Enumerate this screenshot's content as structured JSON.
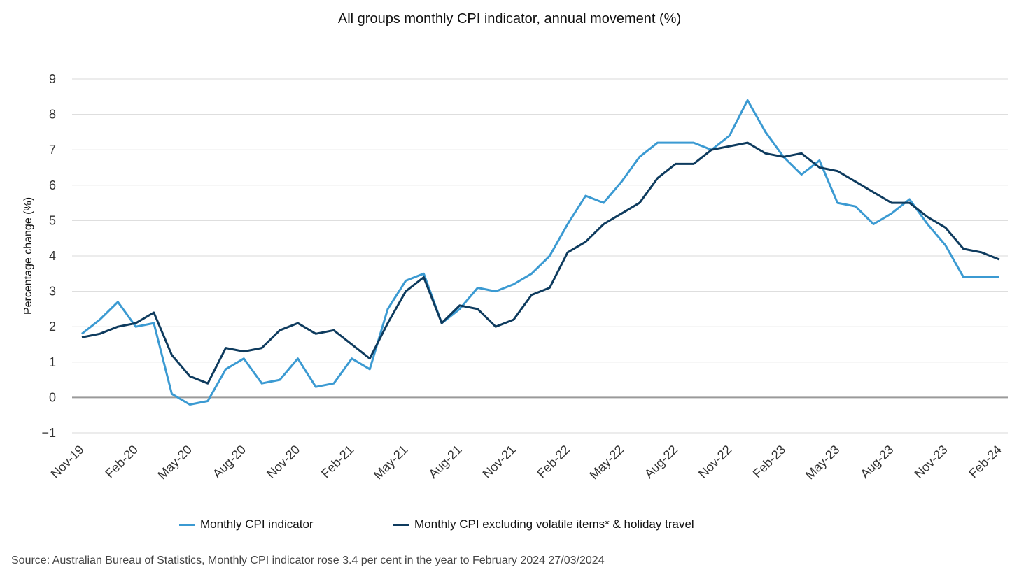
{
  "colors": {
    "series1": "#3b9ad2",
    "series2": "#0e3b5e",
    "grid": "#d9d9d9",
    "zero": "#9a9a9a"
  },
  "footer": {
    "source": "Source: Australian Bureau of Statistics, Monthly CPI indicator rose 3.4 per cent in the year to February 2024 27/03/2024"
  },
  "chart_data": {
    "type": "line",
    "title": "All groups monthly CPI indicator, annual movement (%)",
    "ylabel": "Percentage change (%)",
    "xlabel": "",
    "ylim": [
      -1,
      9
    ],
    "yticks": [
      -1,
      0,
      1,
      2,
      3,
      4,
      5,
      6,
      7,
      8,
      9
    ],
    "grid": true,
    "legend_position": "bottom",
    "x": [
      "Nov-19",
      "Dec-19",
      "Jan-20",
      "Feb-20",
      "Mar-20",
      "Apr-20",
      "May-20",
      "Jun-20",
      "Jul-20",
      "Aug-20",
      "Sep-20",
      "Oct-20",
      "Nov-20",
      "Dec-20",
      "Jan-21",
      "Feb-21",
      "Mar-21",
      "Apr-21",
      "May-21",
      "Jun-21",
      "Jul-21",
      "Aug-21",
      "Sep-21",
      "Oct-21",
      "Nov-21",
      "Dec-21",
      "Jan-22",
      "Feb-22",
      "Mar-22",
      "Apr-22",
      "May-22",
      "Jun-22",
      "Jul-22",
      "Aug-22",
      "Sep-22",
      "Oct-22",
      "Nov-22",
      "Dec-22",
      "Jan-23",
      "Feb-23",
      "Mar-23",
      "Apr-23",
      "May-23",
      "Jun-23",
      "Jul-23",
      "Aug-23",
      "Sep-23",
      "Oct-23",
      "Nov-23",
      "Dec-23",
      "Jan-24",
      "Feb-24"
    ],
    "x_tick_labels": [
      "Nov-19",
      "Feb-20",
      "May-20",
      "Aug-20",
      "Nov-20",
      "Feb-21",
      "May-21",
      "Aug-21",
      "Nov-21",
      "Feb-22",
      "May-22",
      "Aug-22",
      "Nov-22",
      "Feb-23",
      "May-23",
      "Aug-23",
      "Nov-23",
      "Feb-24"
    ],
    "series": [
      {
        "name": "Monthly CPI indicator",
        "color": "#3b9ad2",
        "values": [
          1.8,
          2.2,
          2.7,
          2.0,
          2.1,
          0.1,
          -0.2,
          -0.1,
          0.8,
          1.1,
          0.4,
          0.5,
          1.1,
          0.3,
          0.4,
          1.1,
          0.8,
          2.5,
          3.3,
          3.5,
          2.1,
          2.5,
          3.1,
          3.0,
          3.2,
          3.5,
          4.0,
          4.9,
          5.7,
          5.5,
          6.1,
          6.8,
          7.2,
          7.2,
          7.2,
          7.0,
          7.4,
          8.4,
          7.5,
          6.8,
          6.3,
          6.7,
          5.5,
          5.4,
          4.9,
          5.2,
          5.6,
          4.9,
          4.3,
          3.4,
          3.4,
          3.4
        ]
      },
      {
        "name": "Monthly CPI excluding volatile items* & holiday travel",
        "color": "#0e3b5e",
        "values": [
          1.7,
          1.8,
          2.0,
          2.1,
          2.4,
          1.2,
          0.6,
          0.4,
          1.4,
          1.3,
          1.4,
          1.9,
          2.1,
          1.8,
          1.9,
          1.5,
          1.1,
          2.1,
          3.0,
          3.4,
          2.1,
          2.6,
          2.5,
          2.0,
          2.2,
          2.9,
          3.1,
          4.1,
          4.4,
          4.9,
          5.2,
          5.5,
          6.2,
          6.6,
          6.6,
          7.0,
          7.1,
          7.2,
          6.9,
          6.8,
          6.9,
          6.5,
          6.4,
          6.1,
          5.8,
          5.5,
          5.5,
          5.1,
          4.8,
          4.2,
          4.1,
          3.9
        ]
      }
    ]
  }
}
